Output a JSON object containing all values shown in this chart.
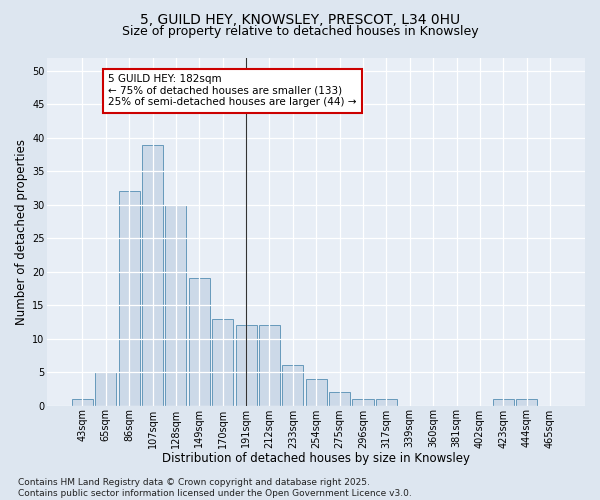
{
  "title_line1": "5, GUILD HEY, KNOWSLEY, PRESCOT, L34 0HU",
  "title_line2": "Size of property relative to detached houses in Knowsley",
  "xlabel": "Distribution of detached houses by size in Knowsley",
  "ylabel": "Number of detached properties",
  "categories": [
    "43sqm",
    "65sqm",
    "86sqm",
    "107sqm",
    "128sqm",
    "149sqm",
    "170sqm",
    "191sqm",
    "212sqm",
    "233sqm",
    "254sqm",
    "275sqm",
    "296sqm",
    "317sqm",
    "339sqm",
    "360sqm",
    "381sqm",
    "402sqm",
    "423sqm",
    "444sqm",
    "465sqm"
  ],
  "values": [
    1,
    5,
    32,
    39,
    30,
    19,
    13,
    12,
    12,
    6,
    4,
    2,
    1,
    1,
    0,
    0,
    0,
    0,
    1,
    1,
    0
  ],
  "bar_color": "#ccd9e8",
  "bar_edge_color": "#6699bb",
  "ylim": [
    0,
    52
  ],
  "yticks": [
    0,
    5,
    10,
    15,
    20,
    25,
    30,
    35,
    40,
    45,
    50
  ],
  "vline_x": 7.0,
  "vline_color": "#333333",
  "annotation_text": "5 GUILD HEY: 182sqm\n← 75% of detached houses are smaller (133)\n25% of semi-detached houses are larger (44) →",
  "box_color": "#ffffff",
  "box_edge_color": "#cc0000",
  "footnote": "Contains HM Land Registry data © Crown copyright and database right 2025.\nContains public sector information licensed under the Open Government Licence v3.0.",
  "bg_color": "#dde6f0",
  "plot_bg_color": "#e8eef6",
  "grid_color": "#ffffff",
  "title_fontsize": 10,
  "subtitle_fontsize": 9,
  "tick_fontsize": 7,
  "label_fontsize": 8.5,
  "annot_fontsize": 7.5,
  "footnote_fontsize": 6.5
}
